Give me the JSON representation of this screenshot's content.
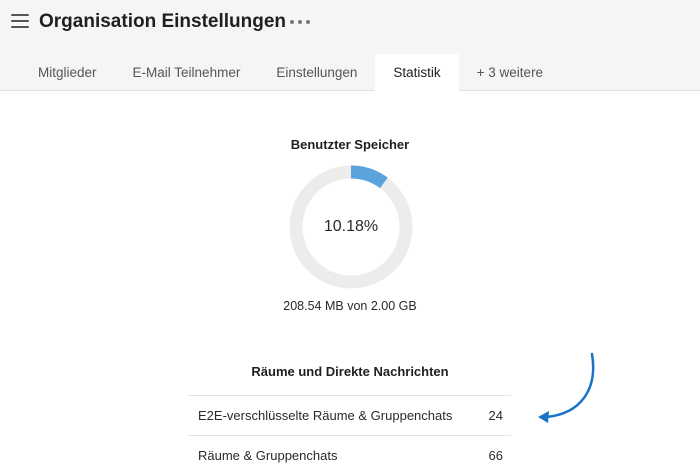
{
  "header": {
    "title": "Organisation Einstellungen"
  },
  "tabs": [
    {
      "label": "Mitglieder"
    },
    {
      "label": "E-Mail Teilnehmer"
    },
    {
      "label": "Einstellungen"
    },
    {
      "label": "Statistik",
      "active": true
    },
    {
      "label": "+ 3 weitere"
    }
  ],
  "storage": {
    "title": "Benutzter Speicher",
    "percent_label": "10.18%",
    "percent": 10.18,
    "usage_text": "208.54 MB von 2.00 GB",
    "fill_color": "#5ba3dc",
    "track_color": "#ececec"
  },
  "rooms": {
    "title": "Räume und Direkte Nachrichten",
    "rows": [
      {
        "label": "E2E-verschlüsselte Räume & Gruppenchats",
        "value": "24"
      },
      {
        "label": "Räume & Gruppenchats",
        "value": "66"
      }
    ]
  },
  "annotation": {
    "arrow_color": "#1a73c8"
  }
}
